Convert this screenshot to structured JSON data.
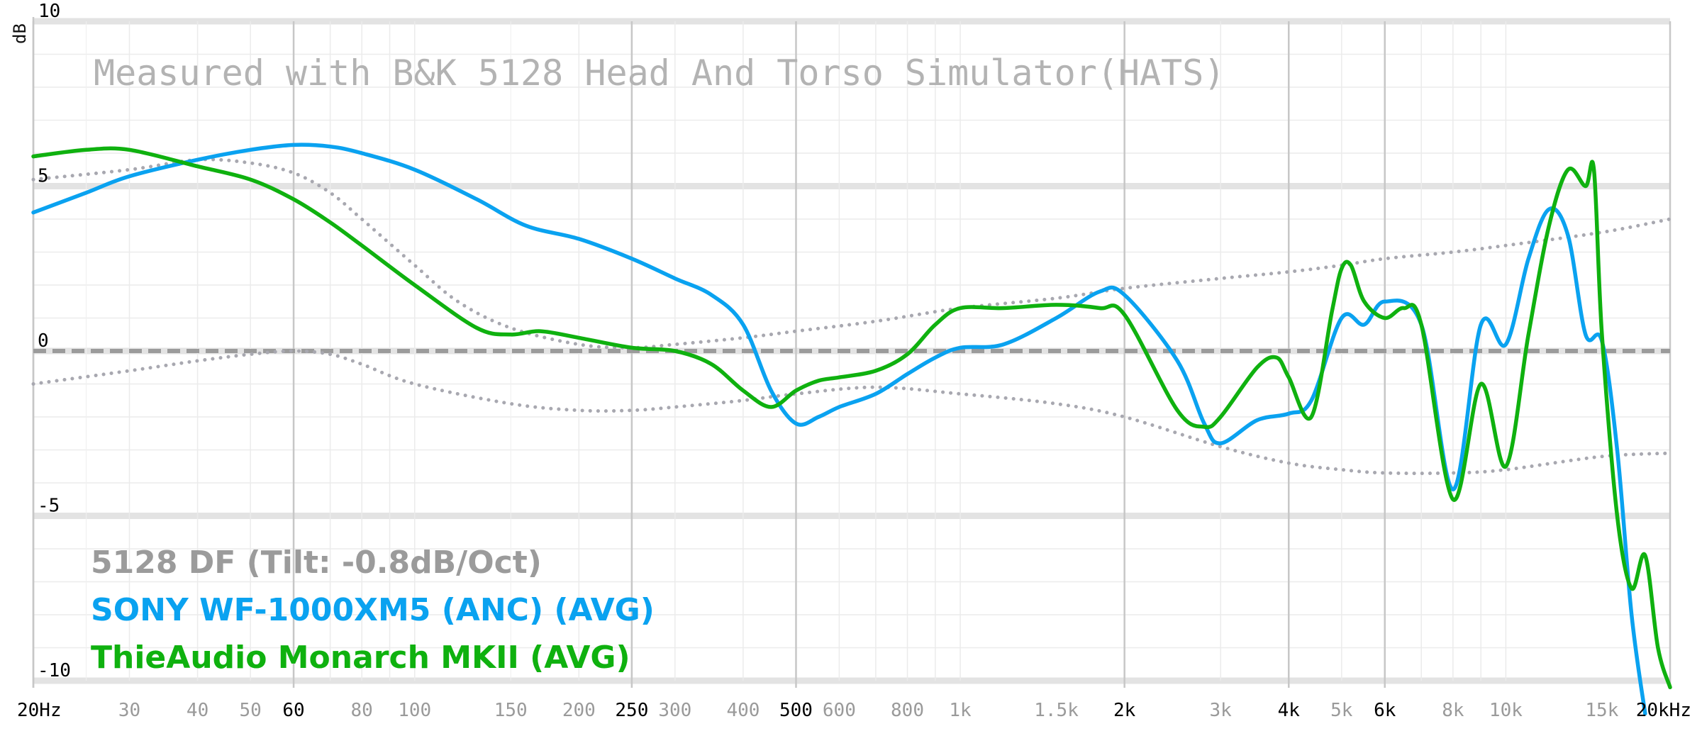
{
  "chart_data": {
    "type": "line",
    "annotation": "Measured with B&K 5128 Head And Torso Simulator(HATS)",
    "ylabel": "dB",
    "xscale": "log",
    "xlim": [
      20,
      20000
    ],
    "ylim": [
      -10,
      10
    ],
    "y_ticks": [
      {
        "value": 10,
        "label": "10"
      },
      {
        "value": 5,
        "label": "5"
      },
      {
        "value": 0,
        "label": "0"
      },
      {
        "value": -5,
        "label": "-5"
      },
      {
        "value": -10,
        "label": "-10"
      }
    ],
    "x_ticks": [
      {
        "value": 20,
        "label": "20Hz",
        "major": true
      },
      {
        "value": 30,
        "label": "30",
        "major": false
      },
      {
        "value": 40,
        "label": "40",
        "major": false
      },
      {
        "value": 50,
        "label": "50",
        "major": false
      },
      {
        "value": 60,
        "label": "60",
        "major": true
      },
      {
        "value": 80,
        "label": "80",
        "major": false
      },
      {
        "value": 100,
        "label": "100",
        "major": false
      },
      {
        "value": 150,
        "label": "150",
        "major": false
      },
      {
        "value": 200,
        "label": "200",
        "major": false
      },
      {
        "value": 250,
        "label": "250",
        "major": true
      },
      {
        "value": 300,
        "label": "300",
        "major": false
      },
      {
        "value": 400,
        "label": "400",
        "major": false
      },
      {
        "value": 500,
        "label": "500",
        "major": true
      },
      {
        "value": 600,
        "label": "600",
        "major": false
      },
      {
        "value": 800,
        "label": "800",
        "major": false
      },
      {
        "value": 1000,
        "label": "1k",
        "major": false
      },
      {
        "value": 1500,
        "label": "1.5k",
        "major": false
      },
      {
        "value": 2000,
        "label": "2k",
        "major": true
      },
      {
        "value": 3000,
        "label": "3k",
        "major": false
      },
      {
        "value": 4000,
        "label": "4k",
        "major": true
      },
      {
        "value": 5000,
        "label": "5k",
        "major": false
      },
      {
        "value": 6000,
        "label": "6k",
        "major": true
      },
      {
        "value": 8000,
        "label": "8k",
        "major": false
      },
      {
        "value": 10000,
        "label": "10k",
        "major": false
      },
      {
        "value": 15000,
        "label": "15k",
        "major": false
      },
      {
        "value": 20000,
        "label": "20kHz",
        "major": true
      }
    ],
    "grid": true,
    "legend": "bottom-left",
    "legend_entries": [
      {
        "label": "5128 DF (Tilt: -0.8dB/Oct)",
        "color": "#9b9b9b"
      },
      {
        "label": "SONY WF-1000XM5 (ANC) (AVG)",
        "color": "#0aa2f0"
      },
      {
        "label": "ThieAudio Monarch MKII (AVG)",
        "color": "#0fb10f"
      }
    ],
    "series": [
      {
        "name": "5128 DF (Tilt: -0.8dB/Oct)",
        "style": "dashed",
        "color": "#9b9b9b",
        "x": [
          20,
          20000
        ],
        "y": [
          0,
          0
        ]
      },
      {
        "style": "dotted",
        "color": "#a8a8b0",
        "x": [
          20,
          30,
          40,
          50,
          60,
          70,
          80,
          100,
          120,
          150,
          200,
          250,
          300,
          400,
          500,
          700,
          1000,
          1500,
          2000,
          3000,
          4000,
          5000,
          6000,
          8000,
          10000,
          15000,
          20000
        ],
        "y": [
          5.2,
          5.5,
          5.8,
          5.7,
          5.4,
          4.8,
          4.0,
          2.6,
          1.5,
          0.7,
          0.2,
          0.1,
          0.2,
          0.4,
          0.6,
          0.9,
          1.3,
          1.6,
          1.9,
          2.2,
          2.4,
          2.6,
          2.8,
          3.0,
          3.2,
          3.6,
          4.0
        ]
      },
      {
        "style": "dotted",
        "color": "#a8a8b0",
        "x": [
          20,
          30,
          40,
          50,
          60,
          70,
          80,
          100,
          150,
          200,
          250,
          300,
          400,
          500,
          700,
          1000,
          1500,
          2000,
          3000,
          4000,
          5000,
          6000,
          8000,
          10000,
          15000,
          20000
        ],
        "y": [
          -1.0,
          -0.6,
          -0.3,
          -0.1,
          0.0,
          -0.1,
          -0.4,
          -1.0,
          -1.6,
          -1.8,
          -1.8,
          -1.7,
          -1.5,
          -1.3,
          -1.1,
          -1.3,
          -1.6,
          -2.0,
          -2.9,
          -3.4,
          -3.6,
          -3.7,
          -3.7,
          -3.6,
          -3.2,
          -3.1
        ]
      },
      {
        "name": "SONY WF-1000XM5 (ANC) (AVG)",
        "style": "solid",
        "color": "#0aa2f0",
        "x": [
          20,
          25,
          30,
          40,
          50,
          60,
          70,
          80,
          100,
          130,
          160,
          200,
          250,
          300,
          350,
          400,
          450,
          500,
          550,
          600,
          700,
          800,
          900,
          1000,
          1200,
          1500,
          1800,
          2000,
          2500,
          2800,
          3000,
          3500,
          4000,
          4400,
          5000,
          5500,
          6000,
          7000,
          8000,
          9000,
          10000,
          11000,
          12000,
          13000,
          14000,
          15000,
          16000,
          17000,
          18000
        ],
        "y": [
          4.2,
          4.8,
          5.3,
          5.8,
          6.1,
          6.25,
          6.2,
          6.0,
          5.5,
          4.6,
          3.8,
          3.4,
          2.8,
          2.2,
          1.7,
          0.8,
          -1.2,
          -2.2,
          -2.0,
          -1.7,
          -1.3,
          -0.7,
          -0.2,
          0.1,
          0.2,
          1.0,
          1.8,
          1.7,
          -0.3,
          -2.2,
          -2.8,
          -2.1,
          -1.9,
          -1.5,
          1.0,
          0.8,
          1.5,
          0.8,
          -4.2,
          0.8,
          0.2,
          2.8,
          4.3,
          3.5,
          0.5,
          0.3,
          -3.0,
          -8.0,
          -11.0
        ]
      },
      {
        "name": "ThieAudio Monarch MKII (AVG)",
        "style": "solid",
        "color": "#0fb10f",
        "x": [
          20,
          25,
          30,
          40,
          50,
          60,
          70,
          80,
          100,
          130,
          150,
          170,
          200,
          250,
          300,
          350,
          400,
          450,
          500,
          550,
          600,
          700,
          800,
          900,
          1000,
          1200,
          1500,
          1800,
          2000,
          2500,
          2800,
          3000,
          3500,
          3800,
          4000,
          4400,
          4800,
          5000,
          5200,
          5500,
          6000,
          6500,
          7000,
          8000,
          9000,
          10000,
          11000,
          12000,
          13000,
          14000,
          14500,
          15000,
          16000,
          17000,
          18000,
          19000,
          20000
        ],
        "y": [
          5.9,
          6.1,
          6.1,
          5.6,
          5.2,
          4.6,
          3.9,
          3.2,
          2.0,
          0.7,
          0.5,
          0.6,
          0.4,
          0.1,
          0.0,
          -0.4,
          -1.2,
          -1.7,
          -1.2,
          -0.9,
          -0.8,
          -0.6,
          -0.1,
          0.8,
          1.3,
          1.3,
          1.4,
          1.3,
          1.1,
          -1.8,
          -2.3,
          -2.0,
          -0.5,
          -0.2,
          -0.8,
          -2.0,
          1.2,
          2.5,
          2.6,
          1.5,
          1.0,
          1.3,
          0.8,
          -4.5,
          -1.0,
          -3.5,
          0.5,
          3.8,
          5.5,
          5.0,
          5.5,
          0.5,
          -5.0,
          -7.2,
          -6.2,
          -9.0,
          -10.2
        ]
      }
    ]
  }
}
